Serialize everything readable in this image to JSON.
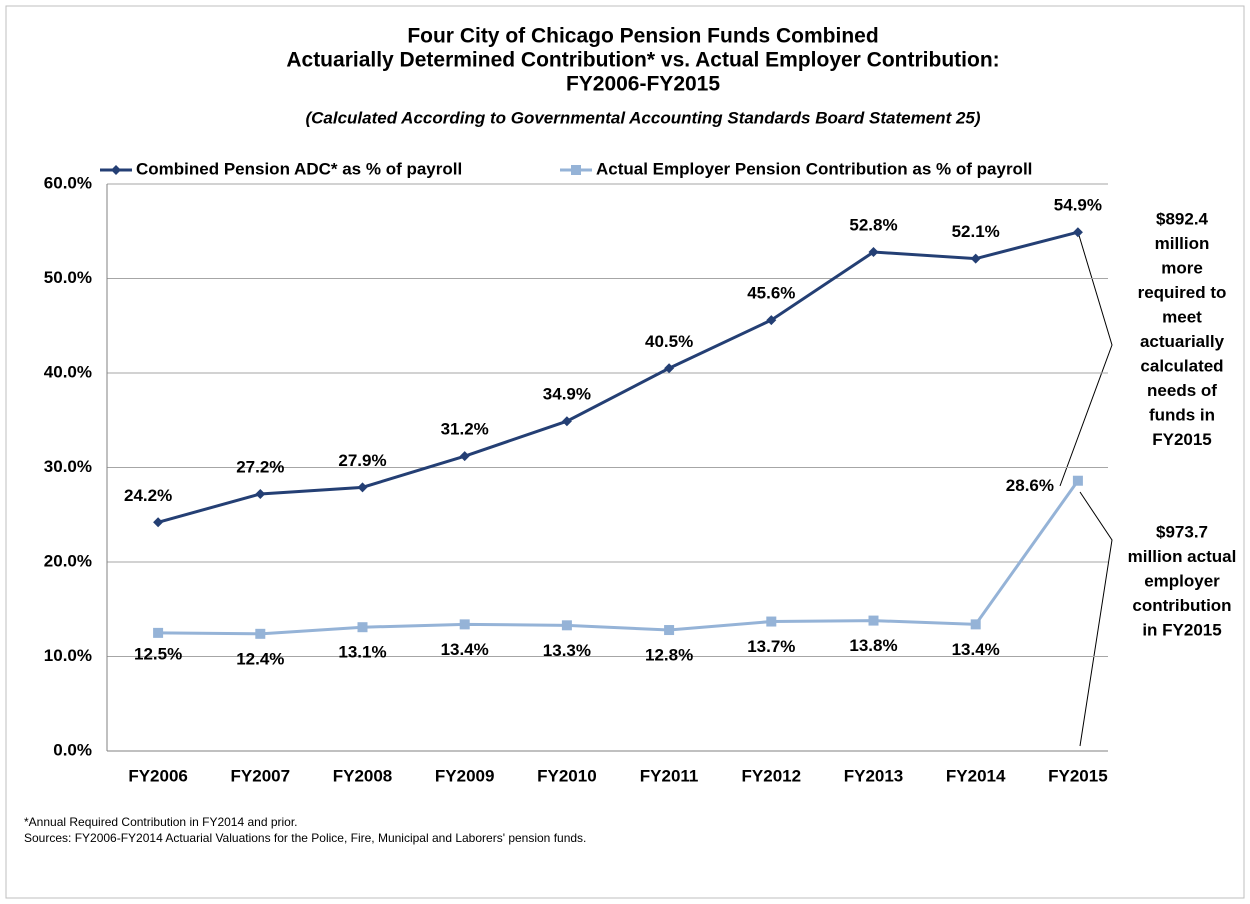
{
  "chart_data": {
    "type": "line",
    "title": [
      "Four City of Chicago Pension Funds Combined",
      "Actuarially Determined Contribution* vs. Actual Employer Contribution:",
      "FY2006-FY2015"
    ],
    "subtitle": "(Calculated According to Governmental Accounting Standards Board Statement 25)",
    "categories": [
      "FY2006",
      "FY2007",
      "FY2008",
      "FY2009",
      "FY2010",
      "FY2011",
      "FY2012",
      "FY2013",
      "FY2014",
      "FY2015"
    ],
    "series": [
      {
        "name": "Combined Pension ADC* as % of payroll",
        "color": "#243f74",
        "marker": "diamond",
        "values": [
          24.2,
          27.2,
          27.9,
          31.2,
          34.9,
          40.5,
          45.6,
          52.8,
          52.1,
          54.9
        ],
        "value_labels": [
          "24.2%",
          "27.2%",
          "27.9%",
          "31.2%",
          "34.9%",
          "40.5%",
          "45.6%",
          "52.8%",
          "52.1%",
          "54.9%"
        ]
      },
      {
        "name": "Actual Employer Pension Contribution as % of payroll",
        "color": "#95b3d7",
        "marker": "square",
        "values": [
          12.5,
          12.4,
          13.1,
          13.4,
          13.3,
          12.8,
          13.7,
          13.8,
          13.4,
          28.6
        ],
        "value_labels": [
          "12.5%",
          "12.4%",
          "13.1%",
          "13.4%",
          "13.3%",
          "12.8%",
          "13.7%",
          "13.8%",
          "13.4%",
          "28.6%"
        ]
      }
    ],
    "ylim": [
      0,
      60
    ],
    "yticks": [
      {
        "value": 0,
        "label": "0.0%"
      },
      {
        "value": 10,
        "label": "10.0%"
      },
      {
        "value": 20,
        "label": "20.0%"
      },
      {
        "value": 30,
        "label": "30.0%"
      },
      {
        "value": 40,
        "label": "40.0%"
      },
      {
        "value": 50,
        "label": "50.0%"
      },
      {
        "value": 60,
        "label": "60.0%"
      }
    ],
    "grid": true,
    "legend": "top",
    "annotations": [
      {
        "lines": [
          "$892.4",
          "million",
          "more",
          "required to",
          "meet",
          "actuarially",
          "calculated",
          "needs of",
          "funds in",
          "FY2015"
        ]
      },
      {
        "lines": [
          "$973.7",
          "million actual",
          "employer",
          "contribution",
          "in FY2015"
        ]
      }
    ],
    "footnotes": [
      "*Annual Required Contribution in FY2014 and prior.",
      "Sources: FY2006-FY2014 Actuarial Valuations for the Police, Fire, Municipal and Laborers' pension funds."
    ]
  }
}
